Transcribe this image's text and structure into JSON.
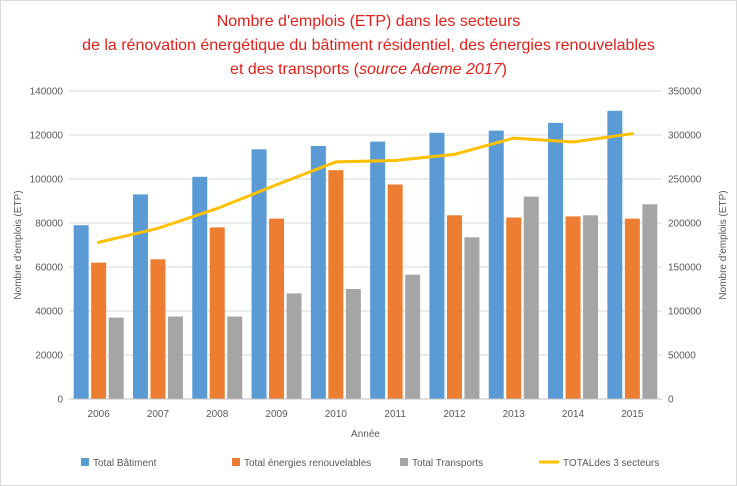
{
  "chart_data": {
    "type": "bar",
    "title_lines": [
      "Nombre d'emplois (ETP) dans les secteurs",
      "de la rénovation énergétique du bâtiment résidentiel, des énergies renouvelables",
      "et des transports ("
    ],
    "title_source": "source Ademe 2017",
    "title_close": ")",
    "xlabel": "Année",
    "ylabel_left": "Nombre d'emplois (ETP)",
    "ylabel_right": "Nombre d'emplois (ETP)",
    "categories": [
      "2006",
      "2007",
      "2008",
      "2009",
      "2010",
      "2011",
      "2012",
      "2013",
      "2014",
      "2015"
    ],
    "ylim_left": [
      0,
      140000
    ],
    "yticks_left": [
      "0",
      "20000",
      "40000",
      "60000",
      "80000",
      "100000",
      "120000",
      "140000"
    ],
    "ylim_right": [
      0,
      350000
    ],
    "yticks_right": [
      "0",
      "50000",
      "100000",
      "150000",
      "200000",
      "250000",
      "300000",
      "350000"
    ],
    "series": [
      {
        "name": "Total Bâtiment",
        "type": "bar",
        "axis": "left",
        "color": "#5b9bd5",
        "values": [
          79000,
          93000,
          101000,
          113500,
          115000,
          117000,
          121000,
          122000,
          125500,
          131000
        ]
      },
      {
        "name": "Total énergies renouvelables",
        "type": "bar",
        "axis": "left",
        "color": "#ed7d31",
        "values": [
          62000,
          63500,
          78000,
          82000,
          104000,
          97500,
          83500,
          82500,
          83000,
          82000
        ]
      },
      {
        "name": "Total Transports",
        "type": "bar",
        "axis": "left",
        "color": "#a5a5a5",
        "values": [
          37000,
          37500,
          37500,
          48000,
          50000,
          56500,
          73500,
          92000,
          83500,
          88500
        ]
      },
      {
        "name": "TOTALdes 3 secteurs",
        "type": "line",
        "axis": "right",
        "color": "#ffc000",
        "values": [
          178000,
          194000,
          216500,
          243500,
          269500,
          271000,
          278000,
          296500,
          292000,
          301500
        ]
      }
    ],
    "legend_position": "bottom",
    "grid": true
  }
}
